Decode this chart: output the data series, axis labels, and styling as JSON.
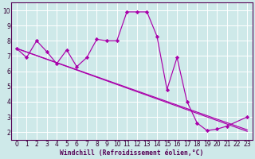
{
  "xlabel": "Windchill (Refroidissement éolien,°C)",
  "xlim": [
    -0.5,
    23.5
  ],
  "ylim": [
    1.5,
    10.5
  ],
  "xticks": [
    0,
    1,
    2,
    3,
    4,
    5,
    6,
    7,
    8,
    9,
    10,
    11,
    12,
    13,
    14,
    15,
    16,
    17,
    18,
    19,
    20,
    21,
    22,
    23
  ],
  "yticks": [
    2,
    3,
    4,
    5,
    6,
    7,
    8,
    9,
    10
  ],
  "bg_color": "#cee9e9",
  "line_color": "#aa00aa",
  "grid_color": "#ffffff",
  "line1_x": [
    0,
    1,
    2,
    3,
    4,
    5,
    6,
    7,
    8,
    9,
    10,
    11,
    12,
    13,
    14,
    15,
    16,
    17,
    18,
    19,
    20,
    21,
    23
  ],
  "line1_y": [
    7.5,
    6.9,
    8.0,
    7.3,
    6.5,
    7.4,
    6.3,
    6.9,
    8.1,
    8.0,
    8.0,
    9.9,
    9.9,
    9.9,
    8.3,
    4.8,
    6.9,
    4.0,
    2.6,
    2.1,
    2.2,
    2.4,
    3.0
  ],
  "line2_x": [
    0,
    23
  ],
  "line2_y": [
    7.5,
    2.15
  ],
  "line3_x": [
    0,
    23
  ],
  "line3_y": [
    7.5,
    2.05
  ],
  "tick_labelsize": 5.5,
  "xlabel_fontsize": 5.8,
  "xlabel_color": "#550055",
  "spine_color": "#550055",
  "tick_color": "#330033",
  "marker": "D",
  "markersize": 2.2,
  "linewidth": 0.85
}
